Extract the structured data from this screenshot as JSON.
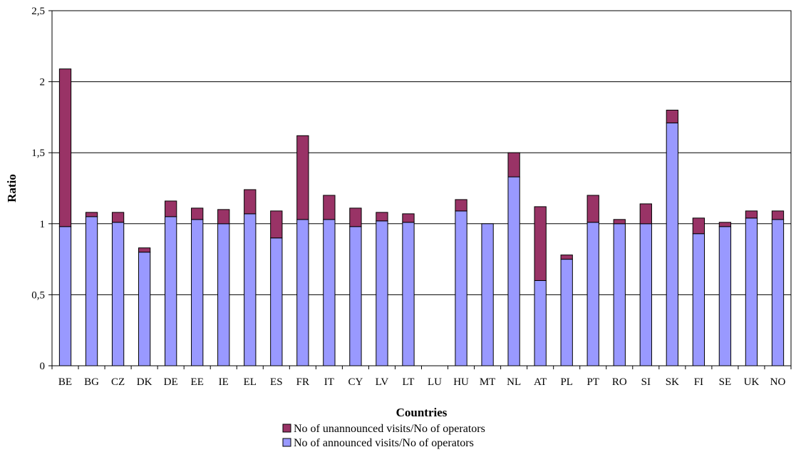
{
  "chart_data": {
    "type": "bar",
    "stacked": true,
    "title": "",
    "xlabel": "Countries",
    "ylabel": "Ratio",
    "ylim": [
      0,
      2.5
    ],
    "yticks": [
      "0",
      "0,5",
      "1",
      "1,5",
      "2",
      "2,5"
    ],
    "ytick_values": [
      0,
      0.5,
      1,
      1.5,
      2,
      2.5
    ],
    "grid": true,
    "legend_position": "bottom-center",
    "categories": [
      "BE",
      "BG",
      "CZ",
      "DK",
      "DE",
      "EE",
      "IE",
      "EL",
      "ES",
      "FR",
      "IT",
      "CY",
      "LV",
      "LT",
      "LU",
      "HU",
      "MT",
      "NL",
      "AT",
      "PL",
      "PT",
      "RO",
      "SI",
      "SK",
      "FI",
      "SE",
      "UK",
      "NO"
    ],
    "series": [
      {
        "name": "No of announced visits/No of operators",
        "color": "#9999ff",
        "values": [
          0.98,
          1.05,
          1.01,
          0.8,
          1.05,
          1.03,
          1.0,
          1.07,
          0.9,
          1.03,
          1.03,
          0.98,
          1.02,
          1.01,
          0,
          1.09,
          1.0,
          1.33,
          0.6,
          0.75,
          1.01,
          1.0,
          1.0,
          1.71,
          0.93,
          0.98,
          1.04,
          1.03
        ]
      },
      {
        "name": "No of unannounced visits/No of operators",
        "color": "#993366",
        "values": [
          1.11,
          0.03,
          0.07,
          0.03,
          0.11,
          0.08,
          0.1,
          0.17,
          0.19,
          0.59,
          0.17,
          0.13,
          0.06,
          0.06,
          0,
          0.08,
          0,
          0.17,
          0.52,
          0.03,
          0.19,
          0.03,
          0.14,
          0.09,
          0.11,
          0.03,
          0.05,
          0.06
        ]
      }
    ],
    "legend": [
      {
        "name": "No of unannounced visits/No of operators",
        "color": "#993366"
      },
      {
        "name": "No of announced visits/No of operators",
        "color": "#9999ff"
      }
    ]
  }
}
